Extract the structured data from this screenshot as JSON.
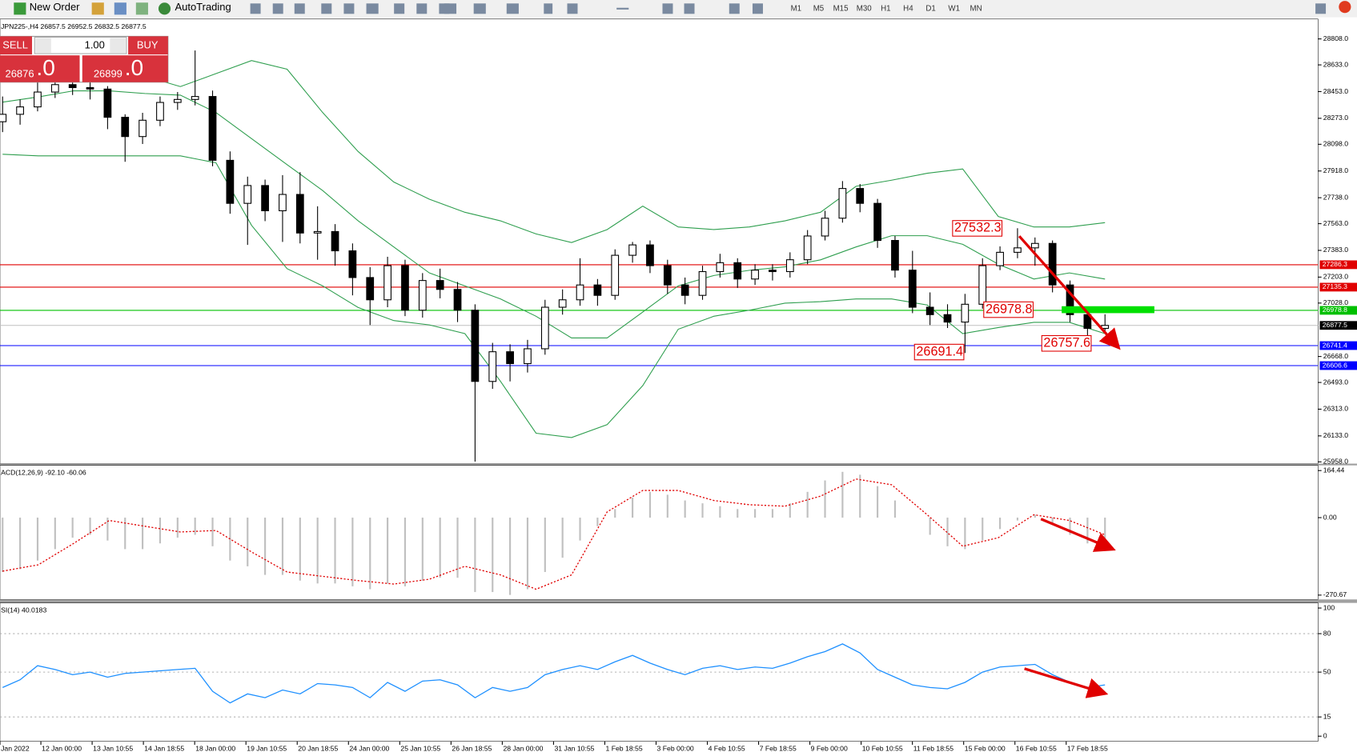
{
  "toolbar": {
    "new_order": "New Order",
    "autotrading": "AutoTrading",
    "timeframes": [
      "M1",
      "M5",
      "M15",
      "M30",
      "H1",
      "H4",
      "D1",
      "W1",
      "MN"
    ]
  },
  "trade_panel": {
    "sell": "SELL",
    "buy": "BUY",
    "volume": "1.00",
    "bid": "26876",
    "bid_big": ".0",
    "ask": "26899",
    "ask_big": ".0"
  },
  "chart_data": [
    {
      "type": "candlestick",
      "title": "JPN225-,H4 26857.5 26952.5 26832.5 26877.5",
      "up_color": "#ffffff",
      "down_color": "#000000",
      "ohlc": [
        [
          28250,
          28420,
          28180,
          28300
        ],
        [
          28300,
          28400,
          28230,
          28350
        ],
        [
          28350,
          28520,
          28320,
          28450
        ],
        [
          28450,
          28560,
          28410,
          28500
        ],
        [
          28500,
          28540,
          28430,
          28480
        ],
        [
          28480,
          28530,
          28400,
          28470
        ],
        [
          28470,
          28490,
          28200,
          28280
        ],
        [
          28280,
          28300,
          27980,
          28150
        ],
        [
          28150,
          28310,
          28100,
          28260
        ],
        [
          28260,
          28420,
          28220,
          28380
        ],
        [
          28380,
          28450,
          28330,
          28400
        ],
        [
          28400,
          28730,
          28360,
          28420
        ],
        [
          28420,
          28460,
          27950,
          27990
        ],
        [
          27990,
          28050,
          27630,
          27700
        ],
        [
          27700,
          27880,
          27420,
          27820
        ],
        [
          27820,
          27860,
          27580,
          27650
        ],
        [
          27650,
          27890,
          27440,
          27760
        ],
        [
          27760,
          27910,
          27430,
          27500
        ],
        [
          27500,
          27680,
          27320,
          27510
        ],
        [
          27510,
          27560,
          27280,
          27380
        ],
        [
          27380,
          27430,
          27080,
          27200
        ],
        [
          27200,
          27270,
          26880,
          27050
        ],
        [
          27050,
          27340,
          27000,
          27280
        ],
        [
          27280,
          27320,
          26940,
          26980
        ],
        [
          26980,
          27230,
          26930,
          27180
        ],
        [
          27180,
          27260,
          27060,
          27120
        ],
        [
          27120,
          27170,
          26900,
          26980
        ],
        [
          26980,
          27020,
          25960,
          26500
        ],
        [
          26500,
          26760,
          26450,
          26700
        ],
        [
          26700,
          26750,
          26500,
          26620
        ],
        [
          26620,
          26780,
          26560,
          26720
        ],
        [
          26720,
          27050,
          26680,
          27000
        ],
        [
          27000,
          27120,
          26950,
          27050
        ],
        [
          27050,
          27330,
          27010,
          27150
        ],
        [
          27150,
          27190,
          27010,
          27080
        ],
        [
          27080,
          27390,
          27050,
          27350
        ],
        [
          27350,
          27440,
          27300,
          27420
        ],
        [
          27420,
          27450,
          27230,
          27280
        ],
        [
          27280,
          27320,
          27090,
          27150
        ],
        [
          27150,
          27200,
          27020,
          27080
        ],
        [
          27080,
          27280,
          27050,
          27240
        ],
        [
          27240,
          27360,
          27200,
          27300
        ],
        [
          27300,
          27330,
          27130,
          27190
        ],
        [
          27190,
          27290,
          27150,
          27250
        ],
        [
          27250,
          27290,
          27180,
          27240
        ],
        [
          27240,
          27370,
          27200,
          27320
        ],
        [
          27320,
          27520,
          27290,
          27480
        ],
        [
          27480,
          27650,
          27450,
          27600
        ],
        [
          27600,
          27850,
          27570,
          27800
        ],
        [
          27800,
          27830,
          27640,
          27700
        ],
        [
          27700,
          27730,
          27400,
          27450
        ],
        [
          27450,
          27480,
          27200,
          27250
        ],
        [
          27250,
          27380,
          26960,
          27000
        ],
        [
          27000,
          27100,
          26880,
          26950
        ],
        [
          26950,
          27020,
          26860,
          26900
        ],
        [
          26900,
          27090,
          26691.4,
          27020
        ],
        [
          27020,
          27330,
          26990,
          27280
        ],
        [
          27280,
          27410,
          27250,
          27370
        ],
        [
          27370,
          27532.3,
          27330,
          27400
        ],
        [
          27400,
          27470,
          27280,
          27430
        ],
        [
          27430,
          27450,
          27100,
          27150
        ],
        [
          27150,
          27180,
          26900,
          26950
        ],
        [
          26950,
          27000,
          26757.6,
          26857.5
        ],
        [
          26857.5,
          26952.5,
          26832.5,
          26877.5
        ]
      ],
      "bands": {
        "color": "#2e9e4e",
        "upper": [
          28574,
          28604,
          28633,
          28615,
          28557,
          28487,
          28574,
          28662,
          28604,
          28312,
          28049,
          27844,
          27728,
          27640,
          27582,
          27494,
          27436,
          27523,
          27681,
          27541,
          27523,
          27541,
          27582,
          27640,
          27815,
          27856,
          27903,
          27932,
          27611,
          27541,
          27541,
          27570
        ],
        "middle": [
          28382,
          28417,
          28458,
          28458,
          28440,
          28429,
          28312,
          28136,
          27961,
          27786,
          27582,
          27406,
          27231,
          27144,
          27056,
          26939,
          26793,
          26793,
          26968,
          27144,
          27214,
          27249,
          27272,
          27319,
          27406,
          27482,
          27482,
          27424,
          27290,
          27190,
          27231,
          27190
        ],
        "lower": [
          28031,
          28020,
          28020,
          28020,
          28020,
          28020,
          27973,
          27552,
          27260,
          27144,
          26998,
          26910,
          26881,
          26822,
          26501,
          26151,
          26122,
          26209,
          26472,
          26852,
          26939,
          26980,
          27027,
          27038,
          27056,
          27056,
          27015,
          26822,
          26863,
          26898,
          26898,
          26822
        ]
      },
      "levels": [
        {
          "value": 27286.3,
          "color": "#e00000",
          "label_color": "#e00000"
        },
        {
          "value": 27135.3,
          "color": "#e00000",
          "label_color": "#e00000"
        },
        {
          "value": 26978.8,
          "color": "#00c000",
          "label_color": "#00c000"
        },
        {
          "value": 26877.5,
          "color": "#c0c0c0",
          "label_color": "#000000"
        },
        {
          "value": 26741.4,
          "color": "#0000ff",
          "label_color": "#0000ff"
        },
        {
          "value": 26606.6,
          "color": "#0000ff",
          "label_color": "#0000ff"
        }
      ],
      "annotations": [
        {
          "value": 27532.3
        },
        {
          "value": 26978.8
        },
        {
          "value": 26691.4
        },
        {
          "value": 26757.6
        }
      ],
      "ylim": [
        25946,
        28942
      ],
      "yticks": [
        {
          "value": 28808,
          "label": "28808.0"
        },
        {
          "value": 28633,
          "label": "28633.0"
        },
        {
          "value": 28453,
          "label": "28453.0"
        },
        {
          "value": 28273,
          "label": "28273.0"
        },
        {
          "value": 28098,
          "label": "28098.0"
        },
        {
          "value": 27918,
          "label": "27918.0"
        },
        {
          "value": 27738,
          "label": "27738.0"
        },
        {
          "value": 27563,
          "label": "27563.0"
        },
        {
          "value": 27383,
          "label": "27383.0"
        },
        {
          "value": 27203,
          "label": "27203.0"
        },
        {
          "value": 27028,
          "label": "27028.0"
        },
        {
          "value": 26668,
          "label": "26668.0"
        },
        {
          "value": 26493,
          "label": "26493.0"
        },
        {
          "value": 26313,
          "label": "26313.0"
        },
        {
          "value": 26133,
          "label": "26133.0"
        },
        {
          "value": 25958,
          "label": "25958.0"
        }
      ]
    },
    {
      "type": "macd",
      "title": "ACD(12,26,9) -92.10 -60.06",
      "hist_color": "#c0c0c0",
      "signal_color": "#e00000",
      "histogram": [
        -190,
        -180,
        -150,
        -110,
        -70,
        -60,
        -80,
        -110,
        -110,
        -90,
        -70,
        -60,
        -100,
        -150,
        -170,
        -200,
        -200,
        -220,
        -230,
        -230,
        -240,
        -250,
        -230,
        -240,
        -220,
        -210,
        -210,
        -260,
        -260,
        -270,
        -250,
        -190,
        -140,
        -80,
        -30,
        30,
        70,
        90,
        80,
        60,
        50,
        40,
        30,
        30,
        30,
        50,
        90,
        130,
        160,
        150,
        110,
        60,
        0,
        -60,
        -100,
        -110,
        -80,
        -40,
        -10,
        10,
        -20,
        -60,
        -90,
        -92.1
      ],
      "signal": [
        -187,
        -165,
        -90,
        -10,
        -30,
        -50,
        -45,
        -120,
        -190,
        -205,
        -220,
        -232,
        -215,
        -170,
        -200,
        -250,
        -200,
        20,
        95,
        95,
        60,
        45,
        40,
        75,
        135,
        115,
        10,
        -100,
        -70,
        10,
        -10,
        -60.06
      ],
      "ylim": [
        -285.8,
        182.6
      ],
      "yticks": [
        164.44,
        {
          "value": 0,
          "label": "0.00"
        },
        -270.67
      ]
    },
    {
      "type": "rsi",
      "title": "SI(14) 40.0183",
      "color": "#1e90ff",
      "values": [
        38,
        44,
        55,
        52,
        48,
        50,
        46,
        49,
        50,
        51,
        52,
        53,
        35,
        26,
        33,
        30,
        36,
        33,
        41,
        40,
        38,
        30,
        42,
        35,
        43,
        44,
        40,
        30,
        38,
        35,
        38,
        48,
        52,
        55,
        52,
        58,
        63,
        57,
        52,
        48,
        53,
        55,
        52,
        54,
        53,
        57,
        62,
        66,
        72,
        65,
        52,
        46,
        40,
        38,
        37,
        42,
        50,
        54,
        55,
        56,
        48,
        42,
        38,
        40.0183
      ],
      "levels": [
        80,
        50,
        15
      ],
      "ylim": [
        -4,
        104
      ],
      "yticks": [
        100,
        80,
        50,
        15,
        0
      ]
    }
  ],
  "time_axis": [
    "Jan 2022",
    "12 Jan 00:00",
    "13 Jan 10:55",
    "14 Jan 18:55",
    "18 Jan 00:00",
    "19 Jan 10:55",
    "20 Jan 18:55",
    "24 Jan 00:00",
    "25 Jan 10:55",
    "26 Jan 18:55",
    "28 Jan 00:00",
    "31 Jan 10:55",
    "1 Feb 18:55",
    "3 Feb 00:00",
    "4 Feb 10:55",
    "7 Feb 18:55",
    "9 Feb 00:00",
    "10 Feb 10:55",
    "11 Feb 18:55",
    "15 Feb 00:00",
    "16 Feb 10:55",
    "17 Feb 18:55"
  ]
}
